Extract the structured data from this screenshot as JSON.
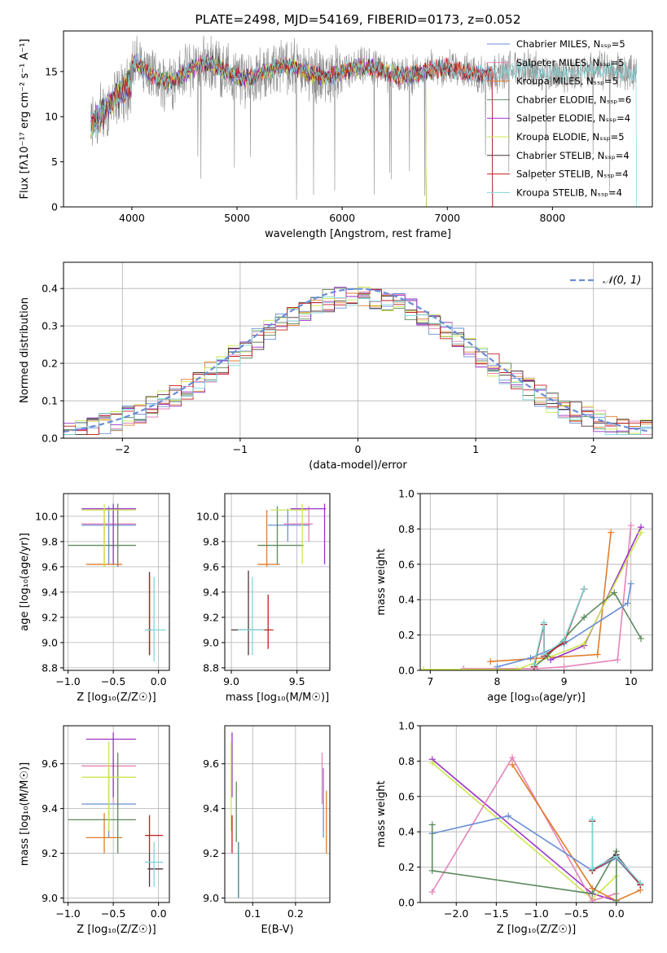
{
  "chart_data": [
    {
      "id": "spectrum",
      "type": "line",
      "title": "PLATE=2498, MJD=54169, FIBERID=0173, z=0.052",
      "xlabel": "wavelength [Angstrom, rest frame]",
      "ylabel": "Flux [fλ10⁻¹⁷ erg cm⁻² s⁻¹ A⁻¹]",
      "xlim": [
        3350,
        8950
      ],
      "ylim": [
        0,
        19.5
      ],
      "xticks": [
        4000,
        5000,
        6000,
        7000,
        8000
      ],
      "yticks": [
        0,
        5,
        10,
        15
      ],
      "grid": false,
      "legend_position": "upper right",
      "observed_spectrum_color": "#8c8c8c",
      "data_range": [
        3610,
        8800
      ],
      "continuum_level": 15,
      "series": [
        {
          "name": "Chabrier MILES, N_SSP=5",
          "color": "#6a8ed6",
          "range": [
            3610,
            7430
          ]
        },
        {
          "name": "Salpeter MILES, N_SSP=5",
          "color": "#e583b8",
          "range": [
            3610,
            7430
          ]
        },
        {
          "name": "Kroupa MILES, N_SSP=5",
          "color": "#e07c2a",
          "range": [
            3610,
            7430
          ]
        },
        {
          "name": "Chabrier ELODIE, N_SSP=6",
          "color": "#5e8a5e",
          "range": [
            3610,
            6800
          ]
        },
        {
          "name": "Salpeter ELODIE, N_SSP=4",
          "color": "#9a32c8",
          "range": [
            3610,
            6800
          ]
        },
        {
          "name": "Kroupa ELODIE, N_SSP=5",
          "color": "#cde64f",
          "range": [
            3610,
            6800
          ]
        },
        {
          "name": "Chabrier STELIB, N_SSP=4",
          "color": "#4d3434",
          "range": [
            3610,
            7430
          ]
        },
        {
          "name": "Salpeter STELIB, N_SSP=4",
          "color": "#c01e1e",
          "range": [
            3610,
            7430
          ]
        },
        {
          "name": "Kroupa STELIB, N_SSP=4",
          "color": "#7fd6d9",
          "range": [
            3610,
            8800
          ]
        }
      ]
    },
    {
      "id": "residuals",
      "type": "line",
      "xlabel": "(data-model)/error",
      "ylabel": "Normed distribution",
      "xlim": [
        -2.5,
        2.5
      ],
      "ylim": [
        0,
        0.47
      ],
      "xticks": [
        -2,
        -1,
        0,
        1,
        2
      ],
      "yticks": [
        0.0,
        0.1,
        0.2,
        0.3,
        0.4
      ],
      "grid": true,
      "legend_position": "upper right",
      "bin_width": 0.1,
      "gaussian": {
        "name": "N(0,1)",
        "color": "#6a8ed6"
      },
      "histogram_colors": [
        "#6a8ed6",
        "#e583b8",
        "#e07c2a",
        "#5e8a5e",
        "#9a32c8",
        "#cde64f",
        "#4d3434",
        "#c01e1e",
        "#7fd6d9"
      ]
    },
    {
      "id": "z_vs_age",
      "type": "scatter",
      "xlabel": "Z [log₁₀(Z/Z☉)]",
      "ylabel": "age  [log₁₀(age/yr)]",
      "xlim": [
        -1.05,
        0.12
      ],
      "ylim": [
        8.78,
        10.18
      ],
      "xticks": [
        -1.0,
        -0.5,
        0.0
      ],
      "yticks": [
        8.8,
        9.0,
        9.2,
        9.4,
        9.6,
        9.8,
        10.0
      ],
      "grid": true,
      "points": [
        {
          "x": -0.55,
          "y": 9.93,
          "xlo": -0.85,
          "xhi": -0.25,
          "ylo": 9.62,
          "yhi": 10.08,
          "color": "#6a8ed6"
        },
        {
          "x": -0.5,
          "y": 9.94,
          "xlo": -0.85,
          "xhi": -0.25,
          "ylo": 9.62,
          "yhi": 10.08,
          "color": "#e583b8"
        },
        {
          "x": -0.6,
          "y": 9.62,
          "xlo": -0.8,
          "xhi": -0.4,
          "ylo": 9.6,
          "yhi": 10.05,
          "color": "#e07c2a"
        },
        {
          "x": -0.45,
          "y": 9.77,
          "xlo": -1.0,
          "xhi": -0.25,
          "ylo": 9.6,
          "yhi": 10.1,
          "color": "#5e8a5e"
        },
        {
          "x": -0.5,
          "y": 10.06,
          "xlo": -0.85,
          "xhi": -0.25,
          "ylo": 9.62,
          "yhi": 10.1,
          "color": "#9a32c8"
        },
        {
          "x": -0.6,
          "y": 10.05,
          "xlo": -0.85,
          "xhi": -0.25,
          "ylo": 9.6,
          "yhi": 10.1,
          "color": "#cde64f"
        },
        {
          "x": -0.1,
          "y": 9.1,
          "xlo": -0.12,
          "xhi": -0.08,
          "ylo": 8.9,
          "yhi": 9.56,
          "color": "#4d3434"
        },
        {
          "x": -0.1,
          "y": 9.1,
          "xlo": -0.12,
          "xhi": -0.08,
          "ylo": 8.9,
          "yhi": 9.53,
          "color": "#c01e1e"
        },
        {
          "x": -0.05,
          "y": 9.1,
          "xlo": -0.15,
          "xhi": 0.08,
          "ylo": 8.85,
          "yhi": 9.52,
          "color": "#7fd6d9"
        }
      ]
    },
    {
      "id": "mass_vs_age",
      "type": "scatter",
      "xlabel": "mass [log₁₀(M/M☉)]",
      "xlim": [
        8.95,
        9.75
      ],
      "ylim": [
        8.78,
        10.18
      ],
      "xticks": [
        9.0,
        9.5
      ],
      "yticks": [
        8.8,
        9.0,
        9.2,
        9.4,
        9.6,
        9.8,
        10.0
      ],
      "grid": true,
      "points": [
        {
          "x": 9.43,
          "y": 9.93,
          "xlo": 9.28,
          "xhi": 9.6,
          "ylo": 9.8,
          "yhi": 10.06,
          "color": "#6a8ed6"
        },
        {
          "x": 9.59,
          "y": 9.94,
          "xlo": 9.4,
          "xhi": 9.62,
          "ylo": 9.8,
          "yhi": 10.08,
          "color": "#e583b8"
        },
        {
          "x": 9.27,
          "y": 9.62,
          "xlo": 9.2,
          "xhi": 9.37,
          "ylo": 9.6,
          "yhi": 10.05,
          "color": "#e07c2a"
        },
        {
          "x": 9.35,
          "y": 9.77,
          "xlo": 9.2,
          "xhi": 9.55,
          "ylo": 9.62,
          "yhi": 10.08,
          "color": "#5e8a5e"
        },
        {
          "x": 9.71,
          "y": 10.06,
          "xlo": 9.45,
          "xhi": 9.72,
          "ylo": 9.62,
          "yhi": 10.1,
          "color": "#9a32c8"
        },
        {
          "x": 9.54,
          "y": 10.05,
          "xlo": 9.3,
          "xhi": 9.58,
          "ylo": 9.62,
          "yhi": 10.1,
          "color": "#cde64f"
        },
        {
          "x": 9.13,
          "y": 9.1,
          "xlo": 9.0,
          "xhi": 9.18,
          "ylo": 8.9,
          "yhi": 9.57,
          "color": "#4d3434"
        },
        {
          "x": 9.28,
          "y": 9.1,
          "xlo": 9.18,
          "xhi": 9.32,
          "ylo": 8.95,
          "yhi": 9.38,
          "color": "#c01e1e"
        },
        {
          "x": 9.16,
          "y": 9.1,
          "xlo": 9.05,
          "xhi": 9.25,
          "ylo": 8.9,
          "yhi": 9.52,
          "color": "#7fd6d9"
        }
      ]
    },
    {
      "id": "age_weights",
      "type": "line",
      "xlabel": "age  [log₁₀(age/yr)]",
      "ylabel": "mass weight",
      "xlim": [
        6.85,
        10.32
      ],
      "ylim": [
        0,
        1.0
      ],
      "xticks": [
        7,
        8,
        9,
        10
      ],
      "yticks": [
        0.0,
        0.2,
        0.4,
        0.6,
        0.8,
        1.0
      ],
      "grid": true,
      "series": [
        {
          "color": "#e583b8",
          "points": [
            [
              7.5,
              0.01
            ],
            [
              8.6,
              0.01
            ],
            [
              9.0,
              0.02
            ],
            [
              9.8,
              0.06
            ],
            [
              10.0,
              0.82
            ]
          ]
        },
        {
          "color": "#e07c2a",
          "points": [
            [
              7.9,
              0.05
            ],
            [
              9.5,
              0.09
            ],
            [
              9.7,
              0.78
            ]
          ]
        },
        {
          "color": "#9a32c8",
          "points": [
            [
              8.8,
              0.06
            ],
            [
              9.3,
              0.14
            ],
            [
              10.15,
              0.81
            ]
          ]
        },
        {
          "color": "#cde64f",
          "points": [
            [
              6.9,
              0.005
            ],
            [
              8.3,
              0.005
            ],
            [
              9.3,
              0.15
            ],
            [
              10.15,
              0.78
            ]
          ]
        },
        {
          "color": "#5e8a5e",
          "points": [
            [
              8.55,
              0.02
            ],
            [
              8.75,
              0.08
            ],
            [
              9.3,
              0.3
            ],
            [
              9.75,
              0.44
            ],
            [
              10.15,
              0.18
            ]
          ]
        },
        {
          "color": "#6a8ed6",
          "points": [
            [
              8.0,
              0.02
            ],
            [
              8.5,
              0.07
            ],
            [
              9.0,
              0.15
            ],
            [
              9.95,
              0.38
            ],
            [
              10.0,
              0.49
            ]
          ]
        },
        {
          "color": "#4d3434",
          "points": [
            [
              8.55,
              0.02
            ],
            [
              8.7,
              0.26
            ],
            [
              8.7,
              0.08
            ],
            [
              9.0,
              0.16
            ],
            [
              9.3,
              0.46
            ]
          ]
        },
        {
          "color": "#c01e1e",
          "points": [
            [
              8.55,
              0.02
            ],
            [
              8.7,
              0.26
            ],
            [
              8.7,
              0.08
            ],
            [
              9.0,
              0.16
            ],
            [
              9.3,
              0.46
            ]
          ]
        },
        {
          "color": "#7fd6d9",
          "points": [
            [
              8.55,
              0.03
            ],
            [
              8.7,
              0.27
            ],
            [
              8.7,
              0.09
            ],
            [
              9.0,
              0.17
            ],
            [
              9.3,
              0.46
            ]
          ]
        }
      ]
    },
    {
      "id": "z_vs_mass",
      "type": "scatter",
      "xlabel": "Z [log₁₀(Z/Z☉)]",
      "ylabel": "mass [log₁₀(M/M☉)]",
      "xlim": [
        -1.05,
        0.12
      ],
      "ylim": [
        8.98,
        9.77
      ],
      "xticks": [
        -1.0,
        -0.5,
        0.0
      ],
      "yticks": [
        9.0,
        9.2,
        9.4,
        9.6
      ],
      "grid": true,
      "points": [
        {
          "x": -0.55,
          "y": 9.42,
          "xlo": -0.85,
          "xhi": -0.25,
          "ylo": 9.27,
          "yhi": 9.58,
          "color": "#6a8ed6"
        },
        {
          "x": -0.5,
          "y": 9.59,
          "xlo": -0.85,
          "xhi": -0.25,
          "ylo": 9.42,
          "yhi": 9.62,
          "color": "#e583b8"
        },
        {
          "x": -0.6,
          "y": 9.27,
          "xlo": -0.8,
          "xhi": -0.4,
          "ylo": 9.2,
          "yhi": 9.38,
          "color": "#e07c2a"
        },
        {
          "x": -0.45,
          "y": 9.35,
          "xlo": -1.0,
          "xhi": -0.25,
          "ylo": 9.2,
          "yhi": 9.65,
          "color": "#5e8a5e"
        },
        {
          "x": -0.5,
          "y": 9.71,
          "xlo": -0.8,
          "xhi": -0.25,
          "ylo": 9.45,
          "yhi": 9.74,
          "color": "#9a32c8"
        },
        {
          "x": -0.55,
          "y": 9.54,
          "xlo": -0.85,
          "xhi": -0.25,
          "ylo": 9.3,
          "yhi": 9.7,
          "color": "#cde64f"
        },
        {
          "x": -0.1,
          "y": 9.13,
          "xlo": -0.12,
          "xhi": 0.05,
          "ylo": 9.05,
          "yhi": 9.2,
          "color": "#4d3434"
        },
        {
          "x": -0.1,
          "y": 9.28,
          "xlo": -0.15,
          "xhi": 0.05,
          "ylo": 9.2,
          "yhi": 9.37,
          "color": "#c01e1e"
        },
        {
          "x": -0.05,
          "y": 9.16,
          "xlo": -0.15,
          "xhi": 0.05,
          "ylo": 9.05,
          "yhi": 9.25,
          "color": "#7fd6d9"
        }
      ]
    },
    {
      "id": "ebv_vs_mass",
      "type": "scatter",
      "xlabel": "E(B-V)",
      "xlim": [
        0.035,
        0.28
      ],
      "ylim": [
        8.98,
        9.77
      ],
      "xticks": [
        0.1,
        0.2
      ],
      "yticks": [
        9.0,
        9.2,
        9.4,
        9.6
      ],
      "grid": true,
      "points": [
        {
          "x": 0.265,
          "y": 9.42,
          "ylo": 9.27,
          "yhi": 9.58,
          "color": "#6a8ed6"
        },
        {
          "x": 0.262,
          "y": 9.59,
          "ylo": 9.42,
          "yhi": 9.65,
          "color": "#e583b8"
        },
        {
          "x": 0.272,
          "y": 9.27,
          "ylo": 9.2,
          "yhi": 9.48,
          "color": "#e07c2a"
        },
        {
          "x": 0.062,
          "y": 9.35,
          "ylo": 9.25,
          "yhi": 9.52,
          "color": "#5e8a5e"
        },
        {
          "x": 0.052,
          "y": 9.71,
          "ylo": 9.45,
          "yhi": 9.74,
          "color": "#9a32c8"
        },
        {
          "x": 0.05,
          "y": 9.54,
          "ylo": 9.3,
          "yhi": 9.7,
          "color": "#cde64f"
        },
        {
          "x": 0.067,
          "y": 9.13,
          "ylo": 9.0,
          "yhi": 9.25,
          "color": "#4d3434"
        },
        {
          "x": 0.052,
          "y": 9.28,
          "ylo": 9.2,
          "yhi": 9.37,
          "color": "#c01e1e"
        },
        {
          "x": 0.068,
          "y": 9.16,
          "ylo": 9.0,
          "yhi": 9.25,
          "color": "#7fd6d9"
        }
      ]
    },
    {
      "id": "z_weights",
      "type": "line",
      "xlabel": "Z [log₁₀(Z/Z☉)]",
      "ylabel": "mass weight",
      "xlim": [
        -2.45,
        0.45
      ],
      "ylim": [
        0,
        1.0
      ],
      "xticks": [
        -2.0,
        -1.5,
        -1.0,
        -0.5,
        0.0
      ],
      "yticks": [
        0.0,
        0.2,
        0.4,
        0.6,
        0.8,
        1.0
      ],
      "grid": true,
      "series": [
        {
          "color": "#9a32c8",
          "points": [
            [
              -2.3,
              0.81
            ],
            [
              -0.3,
              0.05
            ],
            [
              0.0,
              0.01
            ]
          ]
        },
        {
          "color": "#cde64f",
          "points": [
            [
              -2.3,
              0.79
            ],
            [
              -0.3,
              0.02
            ],
            [
              0.0,
              0.15
            ]
          ]
        },
        {
          "color": "#e583b8",
          "points": [
            [
              -2.3,
              0.06
            ],
            [
              -1.3,
              0.82
            ],
            [
              -0.3,
              0.01
            ],
            [
              0.0,
              0.05
            ]
          ]
        },
        {
          "color": "#e07c2a",
          "points": [
            [
              -1.3,
              0.78
            ],
            [
              -0.3,
              0.08
            ],
            [
              0.0,
              0.01
            ],
            [
              0.3,
              0.07
            ]
          ]
        },
        {
          "color": "#6a8ed6",
          "points": [
            [
              -2.3,
              0.39
            ],
            [
              -1.35,
              0.49
            ],
            [
              -0.3,
              0.18
            ],
            [
              0.0,
              0.25
            ],
            [
              0.3,
              0.1
            ]
          ]
        },
        {
          "color": "#5e8a5e",
          "points": [
            [
              -2.3,
              0.44
            ],
            [
              -2.3,
              0.18
            ],
            [
              -0.3,
              0.05
            ],
            [
              0.0,
              0.29
            ],
            [
              0.0,
              0.01
            ]
          ]
        },
        {
          "color": "#4d3434",
          "points": [
            [
              -0.3,
              0.46
            ],
            [
              -0.3,
              0.18
            ],
            [
              0.0,
              0.27
            ],
            [
              0.3,
              0.1
            ]
          ]
        },
        {
          "color": "#c01e1e",
          "points": [
            [
              -0.3,
              0.46
            ],
            [
              -0.3,
              0.18
            ],
            [
              0.0,
              0.26
            ],
            [
              0.3,
              0.1
            ]
          ]
        },
        {
          "color": "#7fd6d9",
          "points": [
            [
              -0.3,
              0.47
            ],
            [
              -0.3,
              0.19
            ],
            [
              0.0,
              0.26
            ],
            [
              0.3,
              0.11
            ]
          ]
        }
      ]
    }
  ]
}
